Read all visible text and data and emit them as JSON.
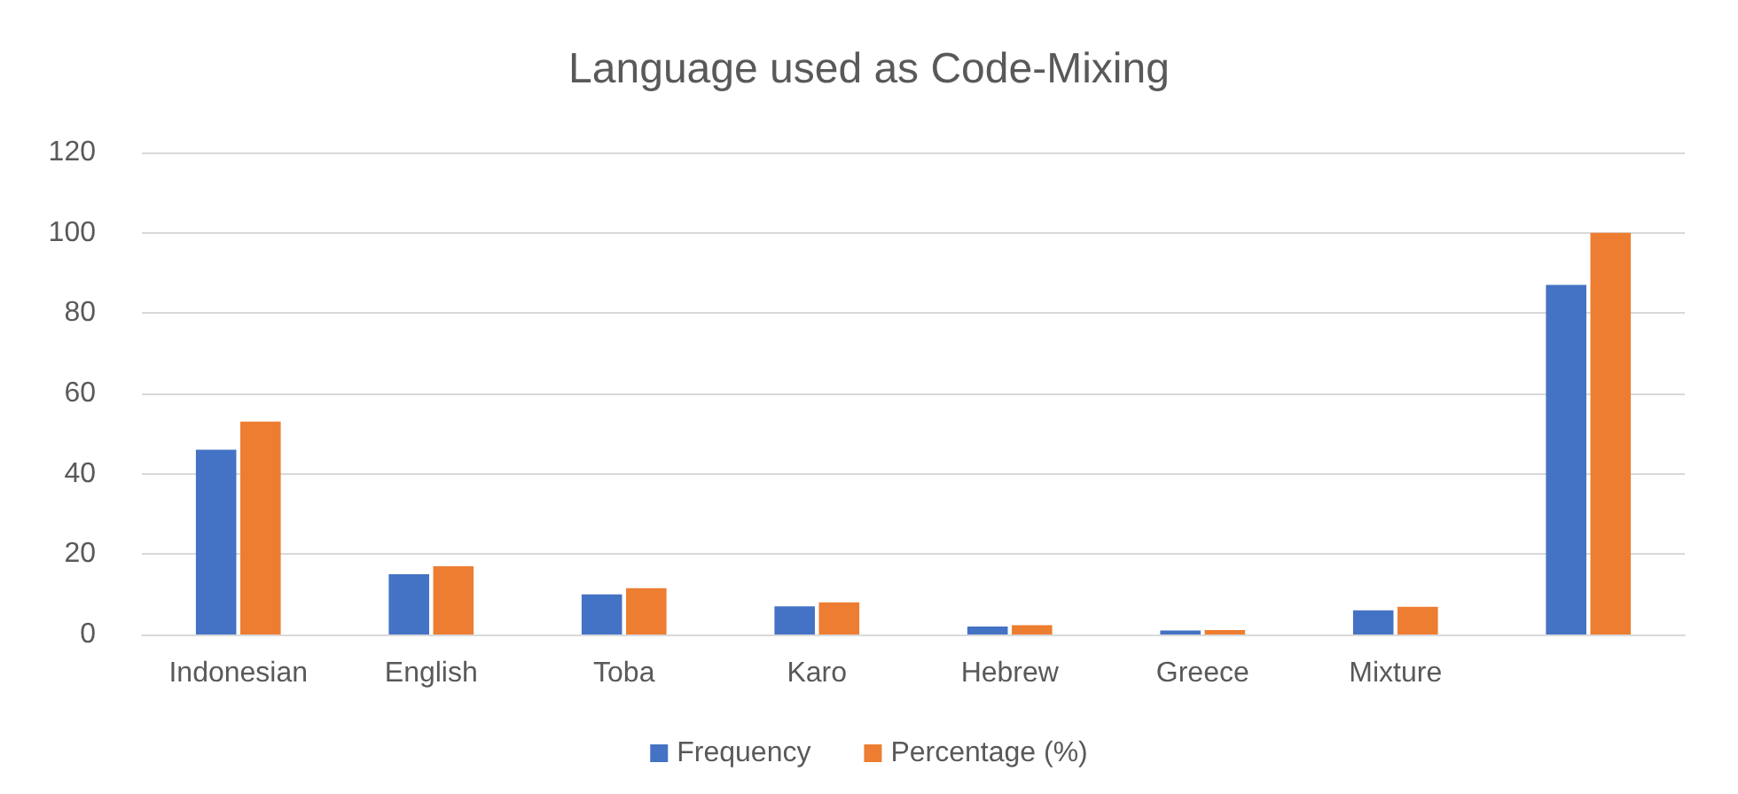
{
  "chart_data": {
    "type": "bar",
    "title": "Language used as Code-Mixing",
    "categories": [
      "Indonesian",
      "English",
      "Toba",
      "Karo",
      "Hebrew",
      "Greece",
      "Mixture",
      null
    ],
    "series": [
      {
        "name": "Frequency",
        "color": "#4472c4",
        "values": [
          46,
          15,
          10,
          7,
          2,
          1,
          6,
          87
        ]
      },
      {
        "name": "Percentage (%)",
        "color": "#ed7d31",
        "values": [
          53,
          17,
          11.5,
          8,
          2.3,
          1.1,
          6.9,
          100
        ]
      }
    ],
    "ylim": [
      0,
      120
    ],
    "yticks": [
      0,
      20,
      40,
      60,
      80,
      100,
      120
    ],
    "grid": "y",
    "legend": "bottom"
  }
}
